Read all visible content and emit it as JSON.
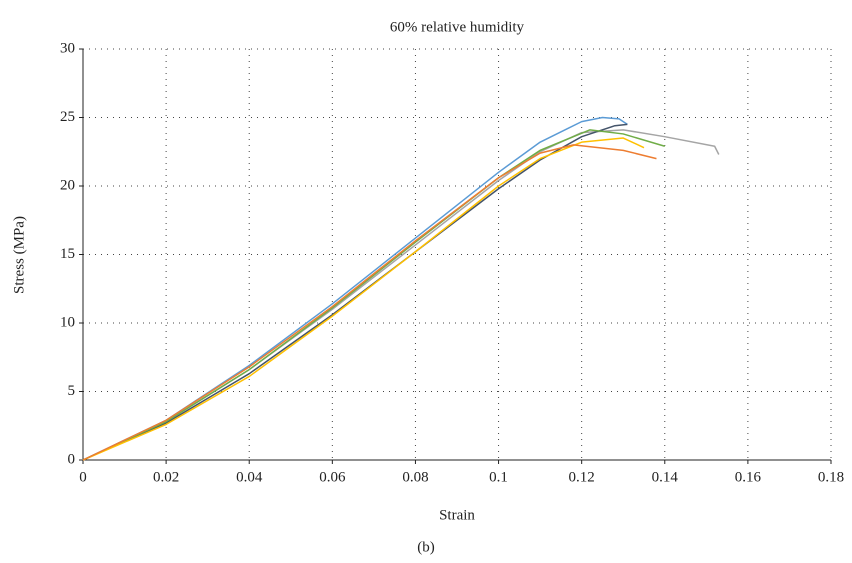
{
  "chart_data": {
    "type": "line",
    "title": "60% relative humidity",
    "x_label": "Strain",
    "y_label": "Stress (MPa)",
    "caption": "(b)",
    "xlim": [
      0,
      0.18
    ],
    "ylim": [
      0,
      30
    ],
    "xticks": [
      0,
      0.02,
      0.04,
      0.06,
      0.08,
      0.1,
      0.12,
      0.14,
      0.16,
      0.18
    ],
    "yticks": [
      0,
      5,
      10,
      15,
      20,
      25,
      30
    ],
    "grid": true,
    "series": [
      {
        "color": "#5b9bd5",
        "x": [
          0,
          0.02,
          0.04,
          0.06,
          0.08,
          0.1,
          0.11,
          0.12,
          0.125,
          0.129,
          0.131
        ],
        "values": [
          0,
          2.9,
          6.9,
          11.4,
          16.2,
          21,
          23.2,
          24.7,
          25,
          24.9,
          24.5
        ]
      },
      {
        "color": "#a5a5a5",
        "x": [
          0,
          0.02,
          0.04,
          0.06,
          0.08,
          0.1,
          0.11,
          0.12,
          0.13,
          0.14,
          0.152,
          0.153
        ],
        "values": [
          0,
          2.8,
          6.6,
          11,
          15.7,
          20.4,
          22.5,
          23.9,
          24.1,
          23.6,
          22.9,
          22.3
        ]
      },
      {
        "color": "#44546a",
        "x": [
          0,
          0.02,
          0.04,
          0.06,
          0.08,
          0.1,
          0.11,
          0.12,
          0.128,
          0.131
        ],
        "values": [
          0,
          2.7,
          6.3,
          10.6,
          15.2,
          19.8,
          21.9,
          23.6,
          24.4,
          24.5
        ]
      },
      {
        "color": "#70ad47",
        "x": [
          0,
          0.02,
          0.04,
          0.06,
          0.08,
          0.1,
          0.11,
          0.122,
          0.13,
          0.14
        ],
        "values": [
          0,
          2.8,
          6.6,
          11.1,
          15.9,
          20.6,
          22.6,
          24.1,
          23.8,
          22.9
        ]
      },
      {
        "color": "#ffc000",
        "x": [
          0,
          0.02,
          0.04,
          0.06,
          0.08,
          0.1,
          0.11,
          0.12,
          0.13,
          0.135
        ],
        "values": [
          0,
          2.6,
          6.1,
          10.5,
          15.2,
          20,
          22,
          23.2,
          23.5,
          22.8
        ]
      },
      {
        "color": "#ed7d31",
        "x": [
          0,
          0.02,
          0.04,
          0.06,
          0.08,
          0.1,
          0.11,
          0.118,
          0.13,
          0.138
        ],
        "values": [
          0,
          2.9,
          6.8,
          11.2,
          16,
          20.6,
          22.4,
          23,
          22.6,
          22
        ]
      }
    ]
  }
}
